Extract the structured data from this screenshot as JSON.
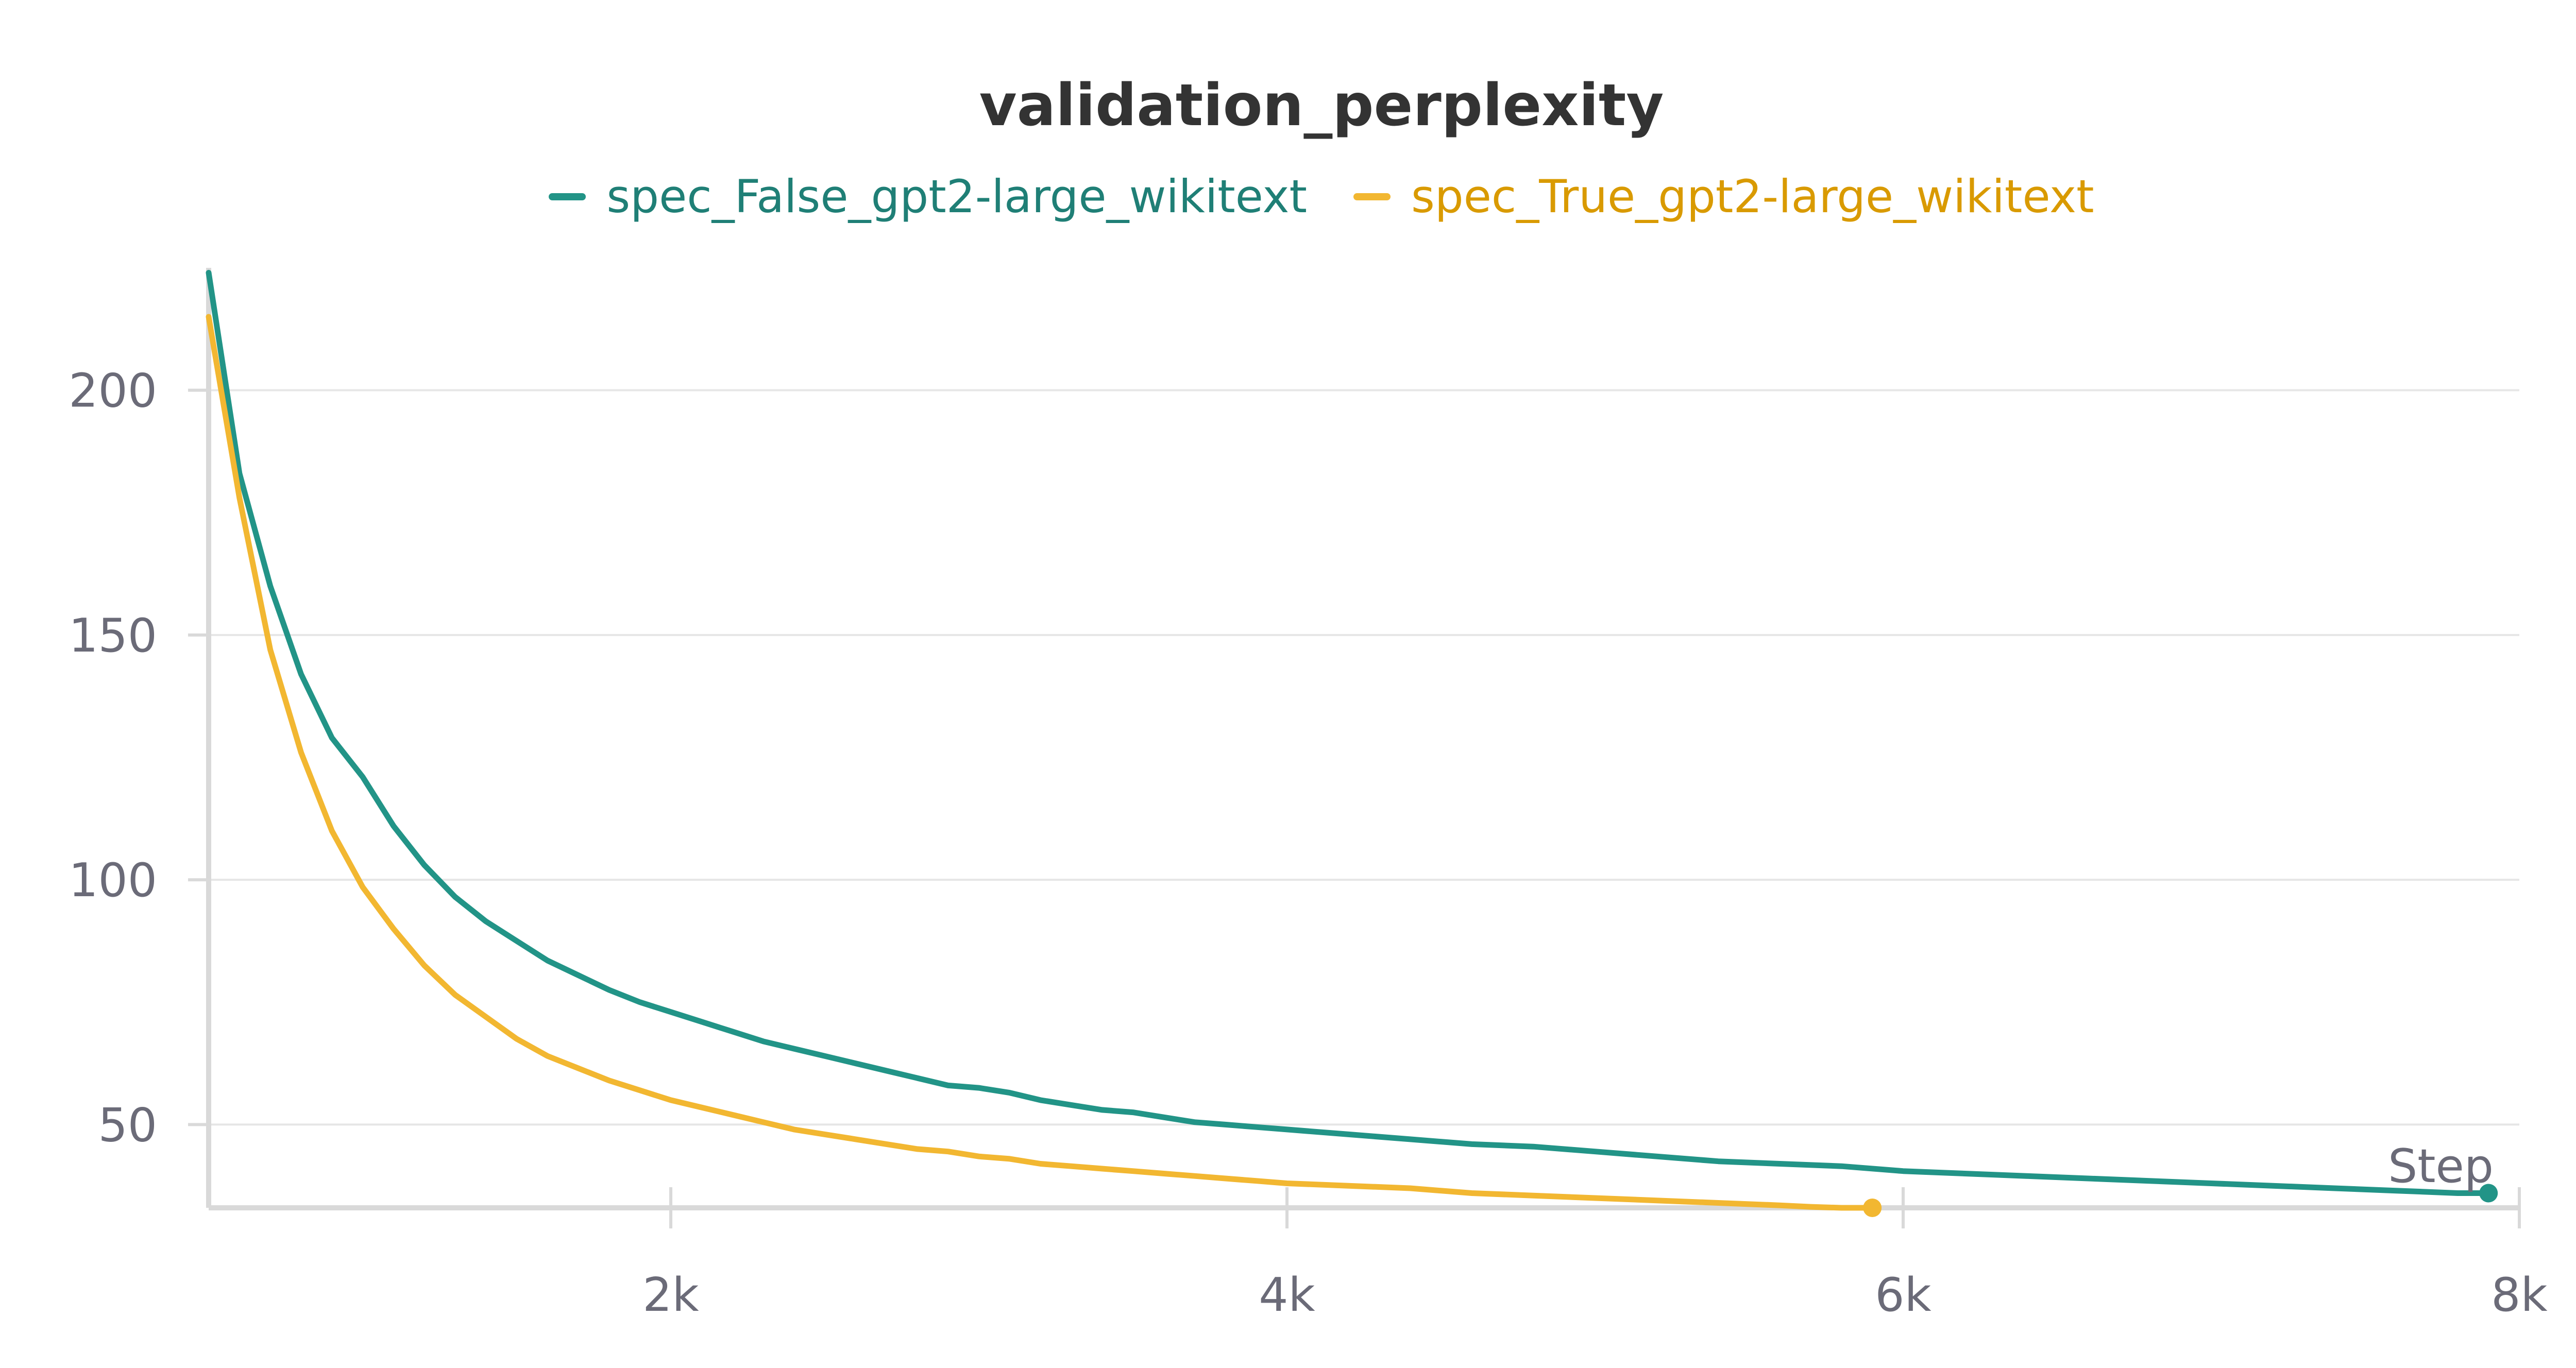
{
  "chart_data": {
    "type": "line",
    "title": "validation_perplexity",
    "xlabel": "Step",
    "ylabel": "",
    "xlim": [
      500,
      8000
    ],
    "ylim": [
      33,
      225
    ],
    "x_ticks": [
      2000,
      4000,
      6000,
      8000
    ],
    "x_tick_labels": [
      "2k",
      "4k",
      "6k",
      "8k"
    ],
    "y_ticks": [
      50,
      100,
      150,
      200
    ],
    "y_tick_labels": [
      "50",
      "100",
      "150",
      "200"
    ],
    "grid": "horizontal",
    "legend_position": "top",
    "series": [
      {
        "name": "spec_False_gpt2-large_wikitext",
        "color": "#229487",
        "x": [
          500,
          600,
          700,
          800,
          900,
          1000,
          1100,
          1200,
          1300,
          1400,
          1500,
          1600,
          1700,
          1800,
          1900,
          2000,
          2100,
          2200,
          2300,
          2400,
          2500,
          2600,
          2700,
          2800,
          2900,
          3000,
          3100,
          3200,
          3300,
          3400,
          3500,
          3600,
          3700,
          3800,
          3900,
          4000,
          4200,
          4400,
          4600,
          4800,
          5000,
          5200,
          5400,
          5600,
          5800,
          6000,
          6200,
          6400,
          6600,
          6800,
          7000,
          7200,
          7400,
          7600,
          7800,
          7900
        ],
        "values": [
          224,
          183,
          160,
          142,
          129,
          121,
          111,
          103,
          96.5,
          91.5,
          87.5,
          83.5,
          80.5,
          77.5,
          75,
          73,
          71,
          69,
          67,
          65.5,
          64,
          62.5,
          61,
          59.5,
          58,
          57.5,
          56.5,
          55,
          54,
          53,
          52.5,
          51.5,
          50.5,
          50,
          49.5,
          49,
          48,
          47,
          46,
          45.5,
          44.5,
          43.5,
          42.5,
          42,
          41.5,
          40.5,
          40,
          39.5,
          39,
          38.5,
          38,
          37.5,
          37,
          36.5,
          36,
          36
        ]
      },
      {
        "name": "spec_True_gpt2-large_wikitext",
        "color": "#f2b731",
        "x": [
          500,
          600,
          700,
          800,
          900,
          1000,
          1100,
          1200,
          1300,
          1400,
          1500,
          1600,
          1700,
          1800,
          1900,
          2000,
          2100,
          2200,
          2300,
          2400,
          2500,
          2600,
          2700,
          2800,
          2900,
          3000,
          3100,
          3200,
          3300,
          3400,
          3500,
          3600,
          3700,
          3800,
          3900,
          4000,
          4200,
          4400,
          4600,
          4800,
          5000,
          5200,
          5400,
          5600,
          5700,
          5800,
          5900
        ],
        "values": [
          215,
          178,
          147,
          126,
          110,
          98.5,
          90,
          82.5,
          76.5,
          72,
          67.5,
          64,
          61.5,
          59,
          57,
          55,
          53.5,
          52,
          50.5,
          49,
          48,
          47,
          46,
          45,
          44.5,
          43.5,
          43,
          42,
          41.5,
          41,
          40.5,
          40,
          39.5,
          39,
          38.5,
          38,
          37.5,
          37,
          36,
          35.5,
          35,
          34.5,
          34,
          33.5,
          33.2,
          33,
          33
        ]
      }
    ]
  }
}
